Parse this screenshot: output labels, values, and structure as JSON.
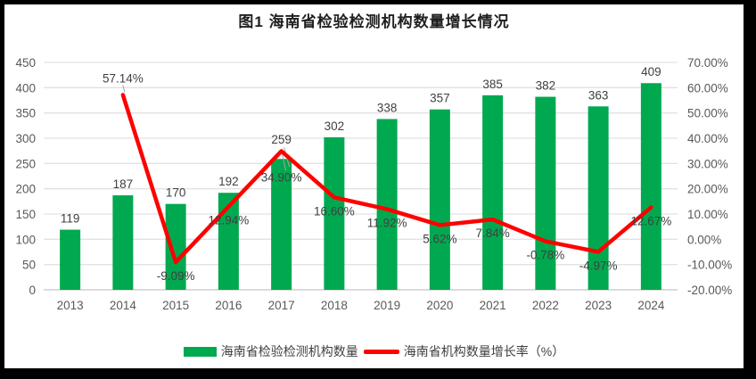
{
  "title": "图1 海南省检验检测机构数量增长情况",
  "chart_data": {
    "type": "bar+line",
    "categories": [
      "2013",
      "2014",
      "2015",
      "2016",
      "2017",
      "2018",
      "2019",
      "2020",
      "2021",
      "2022",
      "2023",
      "2024"
    ],
    "series": [
      {
        "name": "海南省检验检测机构数量",
        "type": "bar",
        "axis": "left",
        "color": "#00A94F",
        "values": [
          119,
          187,
          170,
          192,
          259,
          302,
          338,
          357,
          385,
          382,
          363,
          409
        ],
        "labels": [
          "119",
          "187",
          "170",
          "192",
          "259",
          "302",
          "338",
          "357",
          "385",
          "382",
          "363",
          "409"
        ]
      },
      {
        "name": "海南省机构数量增长率（%）",
        "type": "line",
        "axis": "right",
        "color": "#FF0000",
        "values": [
          null,
          57.14,
          -9.09,
          12.94,
          34.9,
          16.6,
          11.92,
          5.62,
          7.84,
          -0.78,
          -4.97,
          12.67
        ],
        "labels": [
          "",
          "57.14%",
          "-9.09%",
          "12.94%",
          "34.90%",
          "16.60%",
          "11.92%",
          "5.62%",
          "7.84%",
          "-0.78%",
          "-4.97%",
          "12.67%"
        ]
      }
    ],
    "left_axis": {
      "min": 0,
      "max": 450,
      "step": 50,
      "ticks": [
        "0",
        "50",
        "100",
        "150",
        "200",
        "250",
        "300",
        "350",
        "400",
        "450"
      ]
    },
    "right_axis": {
      "min": -20,
      "max": 70,
      "step": 10,
      "ticks": [
        "-20.00%",
        "-10.00%",
        "0.00%",
        "10.00%",
        "20.00%",
        "30.00%",
        "40.00%",
        "50.00%",
        "60.00%",
        "70.00%"
      ]
    },
    "grid": true,
    "legend_position": "bottom",
    "style": {
      "bar_color": "#00A94F",
      "line_color": "#FF0000",
      "grid_color": "#E2E2E2",
      "baseline_color": "#C6C6C6",
      "axis_text_color": "#595959",
      "label_text_color": "#404040",
      "leader_color": "#A6A6A6",
      "title_color": "#1F1F1F",
      "frame_color": "#000000",
      "background": "#FFFFFF"
    }
  }
}
